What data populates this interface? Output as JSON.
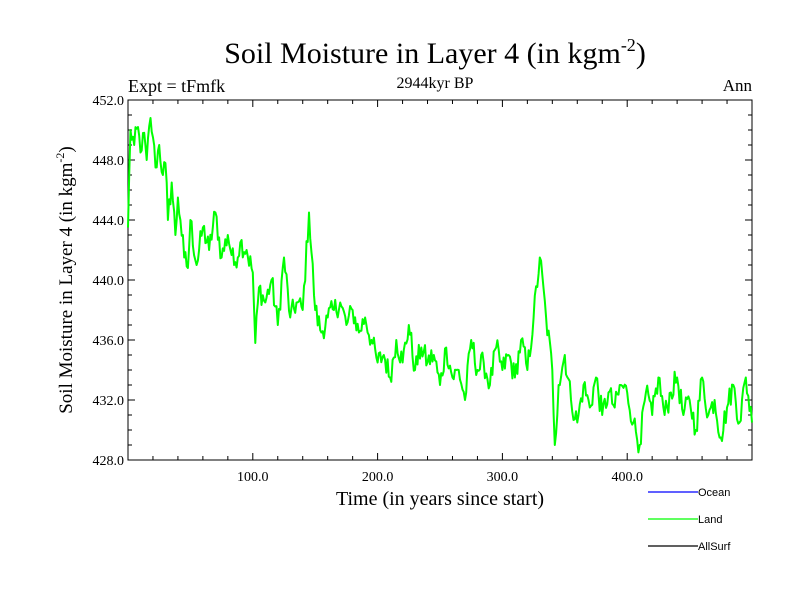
{
  "chart_data": {
    "type": "line",
    "title_main": "Soil Moisture in Layer 4 (in kgm",
    "title_sup": "-2",
    "title_close": ")",
    "subtitle": "2944kyr BP",
    "left_label": "Expt = tFmfk",
    "right_label": "Ann",
    "xlabel": "Time (in years since start)",
    "ylabel_main": "Soil Moisture in Layer 4 (in kgm",
    "ylabel_sup": "-2",
    "ylabel_close": ")",
    "xlim": [
      0,
      500
    ],
    "ylim": [
      428,
      452
    ],
    "x_ticks": [
      {
        "value": 100,
        "label": "100.0"
      },
      {
        "value": 200,
        "label": "200.0"
      },
      {
        "value": 300,
        "label": "300.0"
      },
      {
        "value": 400,
        "label": "400.0"
      }
    ],
    "y_ticks": [
      {
        "value": 428,
        "label": "428.0"
      },
      {
        "value": 432,
        "label": "432.0"
      },
      {
        "value": 436,
        "label": "436.0"
      },
      {
        "value": 440,
        "label": "440.0"
      },
      {
        "value": 444,
        "label": "444.0"
      },
      {
        "value": 448,
        "label": "448.0"
      },
      {
        "value": 452,
        "label": "452.0"
      }
    ],
    "legend": [
      {
        "name": "Ocean",
        "color": "#0000ff"
      },
      {
        "name": "Land",
        "color": "#00ff00"
      },
      {
        "name": "AllSurf",
        "color": "#000000"
      }
    ],
    "series": [
      {
        "name": "Land",
        "color": "#00ff00",
        "x": [
          0,
          2,
          5,
          8,
          10,
          12,
          15,
          18,
          20,
          22,
          25,
          28,
          30,
          32,
          35,
          38,
          40,
          42,
          45,
          48,
          50,
          55,
          60,
          65,
          70,
          75,
          80,
          85,
          90,
          95,
          100,
          102,
          105,
          110,
          115,
          120,
          125,
          130,
          135,
          140,
          145,
          150,
          155,
          160,
          165,
          170,
          175,
          180,
          185,
          190,
          195,
          200,
          205,
          210,
          215,
          220,
          225,
          230,
          235,
          240,
          245,
          250,
          255,
          260,
          265,
          270,
          275,
          280,
          285,
          290,
          295,
          300,
          305,
          310,
          315,
          320,
          325,
          330,
          335,
          340,
          342,
          345,
          350,
          355,
          360,
          365,
          370,
          375,
          380,
          385,
          390,
          395,
          400,
          405,
          410,
          415,
          420,
          425,
          430,
          435,
          440,
          445,
          450,
          455,
          460,
          465,
          470,
          475,
          480,
          485,
          490,
          495,
          500
        ],
        "values": [
          443.5,
          450.0,
          449.0,
          450.2,
          448.5,
          449.8,
          448.0,
          450.8,
          449.5,
          447.5,
          449.0,
          447.0,
          447.8,
          444.0,
          446.5,
          443.0,
          445.5,
          444.0,
          441.5,
          440.8,
          444.0,
          441.0,
          443.5,
          442.0,
          444.5,
          441.5,
          443.0,
          441.0,
          442.5,
          442.0,
          440.5,
          435.8,
          439.5,
          438.5,
          440.0,
          437.0,
          441.5,
          437.5,
          438.5,
          438.0,
          444.5,
          438.0,
          436.5,
          437.5,
          438.0,
          438.5,
          437.0,
          438.0,
          436.5,
          437.5,
          436.0,
          434.5,
          435.0,
          433.5,
          436.0,
          434.5,
          437.0,
          434.0,
          435.5,
          434.5,
          435.0,
          433.0,
          435.5,
          433.5,
          434.0,
          432.0,
          436.0,
          434.0,
          434.5,
          433.0,
          435.5,
          434.0,
          435.0,
          433.5,
          436.0,
          434.0,
          437.5,
          441.5,
          437.5,
          434.0,
          429.0,
          433.0,
          435.0,
          432.0,
          430.5,
          433.0,
          431.5,
          433.5,
          431.0,
          432.5,
          431.5,
          433.0,
          432.5,
          430.5,
          429.0,
          432.5,
          431.0,
          433.5,
          431.0,
          432.5,
          433.5,
          431.0,
          432.0,
          430.0,
          433.5,
          431.0,
          432.0,
          429.5,
          431.5,
          433.0,
          430.5,
          433.5,
          430.5
        ]
      }
    ]
  }
}
